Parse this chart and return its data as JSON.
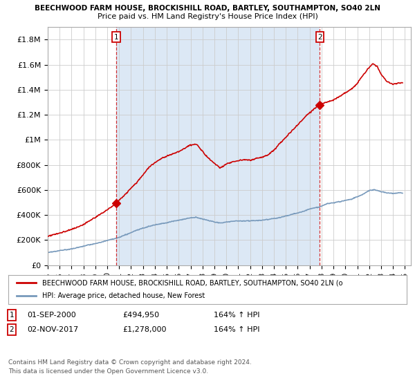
{
  "title1": "BEECHWOOD FARM HOUSE, BROCKISHILL ROAD, BARTLEY, SOUTHAMPTON, SO40 2LN",
  "title2": "Price paid vs. HM Land Registry's House Price Index (HPI)",
  "legend_label1": "BEECHWOOD FARM HOUSE, BROCKISHILL ROAD, BARTLEY, SOUTHAMPTON, SO40 2LN (o",
  "legend_label2": "HPI: Average price, detached house, New Forest",
  "annotation1_date": "01-SEP-2000",
  "annotation1_price": "£494,950",
  "annotation1_hpi": "164% ↑ HPI",
  "annotation2_date": "02-NOV-2017",
  "annotation2_price": "£1,278,000",
  "annotation2_hpi": "164% ↑ HPI",
  "footnote": "Contains HM Land Registry data © Crown copyright and database right 2024.\nThis data is licensed under the Open Government Licence v3.0.",
  "line1_color": "#cc0000",
  "line2_color": "#7799bb",
  "shade_color": "#dce8f5",
  "background_color": "#ffffff",
  "grid_color": "#cccccc",
  "ylim": [
    0,
    1900000
  ],
  "yticks": [
    0,
    200000,
    400000,
    600000,
    800000,
    1000000,
    1200000,
    1400000,
    1600000,
    1800000
  ],
  "ytick_labels": [
    "£0",
    "£200K",
    "£400K",
    "£600K",
    "£800K",
    "£1M",
    "£1.2M",
    "£1.4M",
    "£1.6M",
    "£1.8M"
  ],
  "sale1_x": 2000.75,
  "sale1_y": 494950,
  "sale2_x": 2017.84,
  "sale2_y": 1278000,
  "xmin": 1995,
  "xmax": 2025
}
